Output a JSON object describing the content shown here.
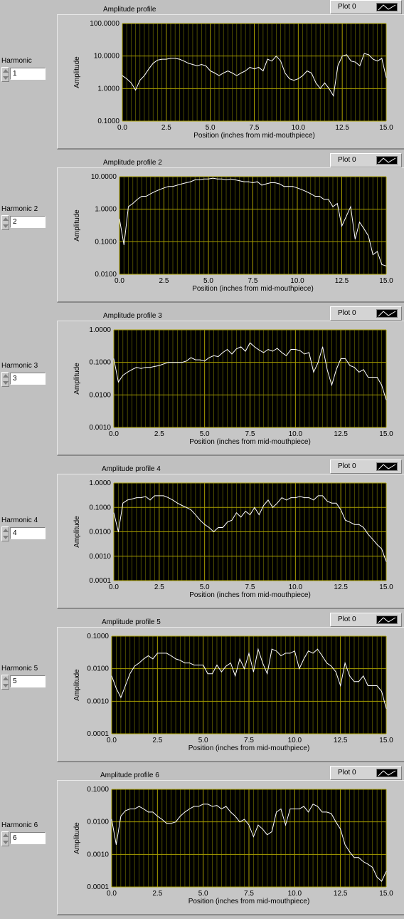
{
  "panels": [
    {
      "control_label": "Harmonic",
      "control_value": "1",
      "graph_title": "Amplitude profile",
      "legend": "Plot 0",
      "xlabel": "Position (inches from mid-mouthpiece)",
      "ylabel": "Amplitude",
      "y_ticks": [
        "100.0000",
        "10.0000",
        "1.0000",
        "0.1000"
      ],
      "x_ticks": [
        "0.0",
        "2.5",
        "5.0",
        "7.5",
        "10.0",
        "12.5",
        "15.0"
      ]
    },
    {
      "control_label": "Harmonic 2",
      "control_value": "2",
      "graph_title": "Amplitude profile 2",
      "legend": "Plot 0",
      "xlabel": "Position (inches from mid-mouthpiece)",
      "ylabel": "Amplitude",
      "y_ticks": [
        "10.0000",
        "1.0000",
        "0.1000",
        "0.0100"
      ],
      "x_ticks": [
        "0.0",
        "2.5",
        "5.0",
        "7.5",
        "10.0",
        "12.5",
        "15.0"
      ]
    },
    {
      "control_label": "Harmonic 3",
      "control_value": "3",
      "graph_title": "Amplitude profile 3",
      "legend": "Plot 0",
      "xlabel": "Position (inches from mid-mouthpiece)",
      "ylabel": "Amplitude",
      "y_ticks": [
        "1.0000",
        "0.1000",
        "0.0100",
        "0.0010"
      ],
      "x_ticks": [
        "0.0",
        "2.5",
        "5.0",
        "7.5",
        "10.0",
        "12.5",
        "15.0"
      ]
    },
    {
      "control_label": "Harmonic 4",
      "control_value": "4",
      "graph_title": "Amplitude profile 4",
      "legend": "Plot 0",
      "xlabel": "Position (inches from mid-mouthpiece)",
      "ylabel": "Amplitude",
      "y_ticks": [
        "1.0000",
        "0.1000",
        "0.0100",
        "0.0010",
        "0.0001"
      ],
      "x_ticks": [
        "0.0",
        "2.5",
        "5.0",
        "7.5",
        "10.0",
        "12.5",
        "15.0"
      ]
    },
    {
      "control_label": "Harmonic 5",
      "control_value": "5",
      "graph_title": "Amplitude profile 5",
      "legend": "Plot 0",
      "xlabel": "Position (inches from mid-mouthpiece)",
      "ylabel": "Amplitude",
      "y_ticks": [
        "0.1000",
        "0.0100",
        "0.0010",
        "0.0001"
      ],
      "x_ticks": [
        "0.0",
        "2.5",
        "5.0",
        "7.5",
        "10.0",
        "12.5",
        "15.0"
      ]
    },
    {
      "control_label": "Harmonic 6",
      "control_value": "6",
      "graph_title": "Amplitude profile 6",
      "legend": "Plot 0",
      "xlabel": "Position (inches from mid-mouthpiece)",
      "ylabel": "Amplitude",
      "y_ticks": [
        "0.1000",
        "0.0100",
        "0.0010",
        "0.0001"
      ],
      "x_ticks": [
        "0.0",
        "2.5",
        "5.0",
        "7.5",
        "10.0",
        "12.5",
        "15.0"
      ]
    }
  ],
  "chart_data": [
    {
      "type": "line",
      "title": "Amplitude profile",
      "xlabel": "Position (inches from mid-mouthpiece)",
      "ylabel": "Amplitude",
      "xlim": [
        0,
        15
      ],
      "ylim": [
        0.1,
        100
      ],
      "yscale": "log",
      "grid": true,
      "legend": "top-right",
      "series": [
        {
          "name": "Plot 0",
          "x": [
            0,
            0.25,
            0.5,
            0.75,
            1,
            1.25,
            1.5,
            1.75,
            2,
            2.25,
            2.5,
            2.75,
            3,
            3.25,
            3.5,
            3.75,
            4,
            4.25,
            4.5,
            4.75,
            5,
            5.25,
            5.5,
            5.75,
            6,
            6.25,
            6.5,
            6.75,
            7,
            7.25,
            7.5,
            7.75,
            8,
            8.25,
            8.5,
            8.75,
            9,
            9.25,
            9.5,
            9.75,
            10,
            10.25,
            10.5,
            10.75,
            11,
            11.25,
            11.5,
            11.75,
            12,
            12.25,
            12.5,
            12.75,
            13,
            13.25,
            13.5,
            13.75,
            14,
            14.25,
            14.5,
            14.75,
            15
          ],
          "values": [
            2.5,
            2,
            1.5,
            0.9,
            1.8,
            2.5,
            4,
            6,
            7.5,
            8,
            8,
            8.5,
            8.5,
            8,
            7,
            6,
            5.5,
            5,
            5.5,
            5,
            3.5,
            3,
            2.5,
            3,
            3.5,
            3,
            2.5,
            3,
            3.5,
            4.5,
            4,
            4.5,
            3.5,
            8,
            7,
            10,
            7,
            3,
            2,
            1.8,
            2,
            2.5,
            3.5,
            3,
            1.5,
            1,
            1.5,
            1,
            0.6,
            5,
            10,
            11,
            7,
            6.5,
            5,
            12,
            11,
            8,
            7,
            8.5,
            2.2
          ]
        }
      ]
    },
    {
      "type": "line",
      "title": "Amplitude profile 2",
      "xlabel": "Position (inches from mid-mouthpiece)",
      "ylabel": "Amplitude",
      "xlim": [
        0,
        15
      ],
      "ylim": [
        0.01,
        10
      ],
      "yscale": "log",
      "grid": true,
      "legend": "top-right",
      "series": [
        {
          "name": "Plot 0",
          "x": [
            0,
            0.25,
            0.5,
            0.75,
            1,
            1.25,
            1.5,
            1.75,
            2,
            2.25,
            2.5,
            2.75,
            3,
            3.25,
            3.5,
            3.75,
            4,
            4.25,
            4.5,
            4.75,
            5,
            5.25,
            5.5,
            5.75,
            6,
            6.25,
            6.5,
            6.75,
            7,
            7.25,
            7.5,
            7.75,
            8,
            8.25,
            8.5,
            8.75,
            9,
            9.25,
            9.5,
            9.75,
            10,
            10.25,
            10.5,
            10.75,
            11,
            11.25,
            11.5,
            11.75,
            12,
            12.25,
            12.5,
            12.75,
            13,
            13.25,
            13.5,
            13.75,
            14,
            14.25,
            14.5,
            14.75,
            15
          ],
          "values": [
            0.5,
            0.08,
            1.2,
            1.5,
            2,
            2.5,
            2.5,
            3,
            3.5,
            4,
            4.5,
            5,
            5,
            5.5,
            6,
            6.5,
            7,
            8,
            8,
            8.5,
            8.5,
            9,
            8.5,
            8.5,
            8,
            8.5,
            8,
            7.5,
            7,
            7,
            6.5,
            7,
            5.5,
            6,
            6.5,
            6.5,
            6,
            5,
            5,
            5,
            4.5,
            4,
            3.5,
            3,
            2.5,
            2.5,
            2,
            2,
            1.2,
            1.5,
            0.3,
            0.6,
            1.2,
            0.12,
            0.4,
            0.25,
            0.15,
            0.04,
            0.05,
            0.02,
            0.018
          ]
        }
      ]
    },
    {
      "type": "line",
      "title": "Amplitude profile 3",
      "xlabel": "Position (inches from mid-mouthpiece)",
      "ylabel": "Amplitude",
      "xlim": [
        0,
        15
      ],
      "ylim": [
        0.001,
        1
      ],
      "yscale": "log",
      "grid": true,
      "legend": "top-right",
      "series": [
        {
          "name": "Plot 0",
          "x": [
            0,
            0.25,
            0.5,
            0.75,
            1,
            1.25,
            1.5,
            1.75,
            2,
            2.25,
            2.5,
            2.75,
            3,
            3.25,
            3.5,
            3.75,
            4,
            4.25,
            4.5,
            4.75,
            5,
            5.25,
            5.5,
            5.75,
            6,
            6.25,
            6.5,
            6.75,
            7,
            7.25,
            7.5,
            7.75,
            8,
            8.25,
            8.5,
            8.75,
            9,
            9.25,
            9.5,
            9.75,
            10,
            10.25,
            10.5,
            10.75,
            11,
            11.25,
            11.5,
            11.75,
            12,
            12.25,
            12.5,
            12.75,
            13,
            13.25,
            13.5,
            13.75,
            14,
            14.25,
            14.5,
            14.75,
            15
          ],
          "values": [
            0.13,
            0.025,
            0.04,
            0.05,
            0.06,
            0.07,
            0.065,
            0.07,
            0.07,
            0.075,
            0.08,
            0.09,
            0.1,
            0.1,
            0.1,
            0.1,
            0.11,
            0.14,
            0.12,
            0.12,
            0.11,
            0.14,
            0.16,
            0.15,
            0.2,
            0.25,
            0.18,
            0.26,
            0.3,
            0.22,
            0.4,
            0.3,
            0.24,
            0.2,
            0.25,
            0.22,
            0.27,
            0.2,
            0.16,
            0.25,
            0.25,
            0.23,
            0.18,
            0.2,
            0.05,
            0.1,
            0.3,
            0.06,
            0.02,
            0.06,
            0.13,
            0.13,
            0.08,
            0.07,
            0.05,
            0.06,
            0.035,
            0.035,
            0.035,
            0.02,
            0.007
          ]
        }
      ]
    },
    {
      "type": "line",
      "title": "Amplitude profile 4",
      "xlabel": "Position (inches from mid-mouthpiece)",
      "ylabel": "Amplitude",
      "xlim": [
        0,
        15
      ],
      "ylim": [
        0.0001,
        1
      ],
      "yscale": "log",
      "grid": true,
      "legend": "top-right",
      "series": [
        {
          "name": "Plot 0",
          "x": [
            0,
            0.25,
            0.5,
            0.75,
            1,
            1.25,
            1.5,
            1.75,
            2,
            2.25,
            2.5,
            2.75,
            3,
            3.25,
            3.5,
            3.75,
            4,
            4.25,
            4.5,
            4.75,
            5,
            5.25,
            5.5,
            5.75,
            6,
            6.25,
            6.5,
            6.75,
            7,
            7.25,
            7.5,
            7.75,
            8,
            8.25,
            8.5,
            8.75,
            9,
            9.25,
            9.5,
            9.75,
            10,
            10.25,
            10.5,
            10.75,
            11,
            11.25,
            11.5,
            11.75,
            12,
            12.25,
            12.5,
            12.75,
            13,
            13.25,
            13.5,
            13.75,
            14,
            14.25,
            14.5,
            14.75,
            15
          ],
          "values": [
            0.06,
            0.01,
            0.15,
            0.2,
            0.22,
            0.25,
            0.25,
            0.28,
            0.2,
            0.3,
            0.3,
            0.3,
            0.25,
            0.2,
            0.15,
            0.12,
            0.1,
            0.08,
            0.05,
            0.03,
            0.02,
            0.015,
            0.01,
            0.015,
            0.015,
            0.025,
            0.03,
            0.06,
            0.04,
            0.07,
            0.05,
            0.1,
            0.05,
            0.12,
            0.2,
            0.1,
            0.15,
            0.25,
            0.2,
            0.25,
            0.25,
            0.28,
            0.25,
            0.25,
            0.2,
            0.3,
            0.3,
            0.18,
            0.15,
            0.15,
            0.08,
            0.03,
            0.025,
            0.02,
            0.02,
            0.015,
            0.008,
            0.005,
            0.003,
            0.002,
            0.0006
          ]
        }
      ]
    },
    {
      "type": "line",
      "title": "Amplitude profile 5",
      "xlabel": "Position (inches from mid-mouthpiece)",
      "ylabel": "Amplitude",
      "xlim": [
        0,
        15
      ],
      "ylim": [
        0.0001,
        0.1
      ],
      "yscale": "log",
      "grid": true,
      "legend": "top-right",
      "series": [
        {
          "name": "Plot 0",
          "x": [
            0,
            0.25,
            0.5,
            0.75,
            1,
            1.25,
            1.5,
            1.75,
            2,
            2.25,
            2.5,
            2.75,
            3,
            3.25,
            3.5,
            3.75,
            4,
            4.25,
            4.5,
            4.75,
            5,
            5.25,
            5.5,
            5.75,
            6,
            6.25,
            6.5,
            6.75,
            7,
            7.25,
            7.5,
            7.75,
            8,
            8.25,
            8.5,
            8.75,
            9,
            9.25,
            9.5,
            9.75,
            10,
            10.25,
            10.5,
            10.75,
            11,
            11.25,
            11.5,
            11.75,
            12,
            12.25,
            12.5,
            12.75,
            13,
            13.25,
            13.5,
            13.75,
            14,
            14.25,
            14.5,
            14.75,
            15
          ],
          "values": [
            0.006,
            0.0025,
            0.0013,
            0.003,
            0.007,
            0.012,
            0.015,
            0.02,
            0.025,
            0.02,
            0.03,
            0.03,
            0.03,
            0.025,
            0.02,
            0.018,
            0.015,
            0.015,
            0.013,
            0.013,
            0.013,
            0.007,
            0.007,
            0.013,
            0.008,
            0.012,
            0.015,
            0.006,
            0.02,
            0.01,
            0.03,
            0.008,
            0.04,
            0.015,
            0.007,
            0.04,
            0.035,
            0.025,
            0.03,
            0.03,
            0.035,
            0.01,
            0.02,
            0.035,
            0.03,
            0.04,
            0.025,
            0.015,
            0.012,
            0.008,
            0.003,
            0.015,
            0.006,
            0.004,
            0.004,
            0.006,
            0.003,
            0.003,
            0.003,
            0.002,
            0.0006
          ]
        }
      ]
    },
    {
      "type": "line",
      "title": "Amplitude profile 6",
      "xlabel": "Position (inches from mid-mouthpiece)",
      "ylabel": "Amplitude",
      "xlim": [
        0,
        15
      ],
      "ylim": [
        0.0001,
        0.1
      ],
      "yscale": "log",
      "grid": true,
      "legend": "top-right",
      "series": [
        {
          "name": "Plot 0",
          "x": [
            0,
            0.25,
            0.5,
            0.75,
            1,
            1.25,
            1.5,
            1.75,
            2,
            2.25,
            2.5,
            2.75,
            3,
            3.25,
            3.5,
            3.75,
            4,
            4.25,
            4.5,
            4.75,
            5,
            5.25,
            5.5,
            5.75,
            6,
            6.25,
            6.5,
            6.75,
            7,
            7.25,
            7.5,
            7.75,
            8,
            8.25,
            8.5,
            8.75,
            9,
            9.25,
            9.5,
            9.75,
            10,
            10.25,
            10.5,
            10.75,
            11,
            11.25,
            11.5,
            11.75,
            12,
            12.25,
            12.5,
            12.75,
            13,
            13.25,
            13.5,
            13.75,
            14,
            14.25,
            14.5,
            14.75,
            15
          ],
          "values": [
            0.012,
            0.002,
            0.015,
            0.022,
            0.025,
            0.025,
            0.03,
            0.025,
            0.02,
            0.02,
            0.015,
            0.012,
            0.009,
            0.009,
            0.01,
            0.015,
            0.02,
            0.025,
            0.03,
            0.03,
            0.035,
            0.035,
            0.03,
            0.032,
            0.025,
            0.03,
            0.02,
            0.015,
            0.01,
            0.012,
            0.008,
            0.0035,
            0.008,
            0.006,
            0.004,
            0.005,
            0.02,
            0.025,
            0.008,
            0.025,
            0.025,
            0.025,
            0.03,
            0.02,
            0.035,
            0.03,
            0.02,
            0.02,
            0.018,
            0.01,
            0.006,
            0.002,
            0.0012,
            0.0008,
            0.0008,
            0.0006,
            0.0005,
            0.0004,
            0.0002,
            0.00015,
            0.0003
          ]
        }
      ]
    }
  ]
}
